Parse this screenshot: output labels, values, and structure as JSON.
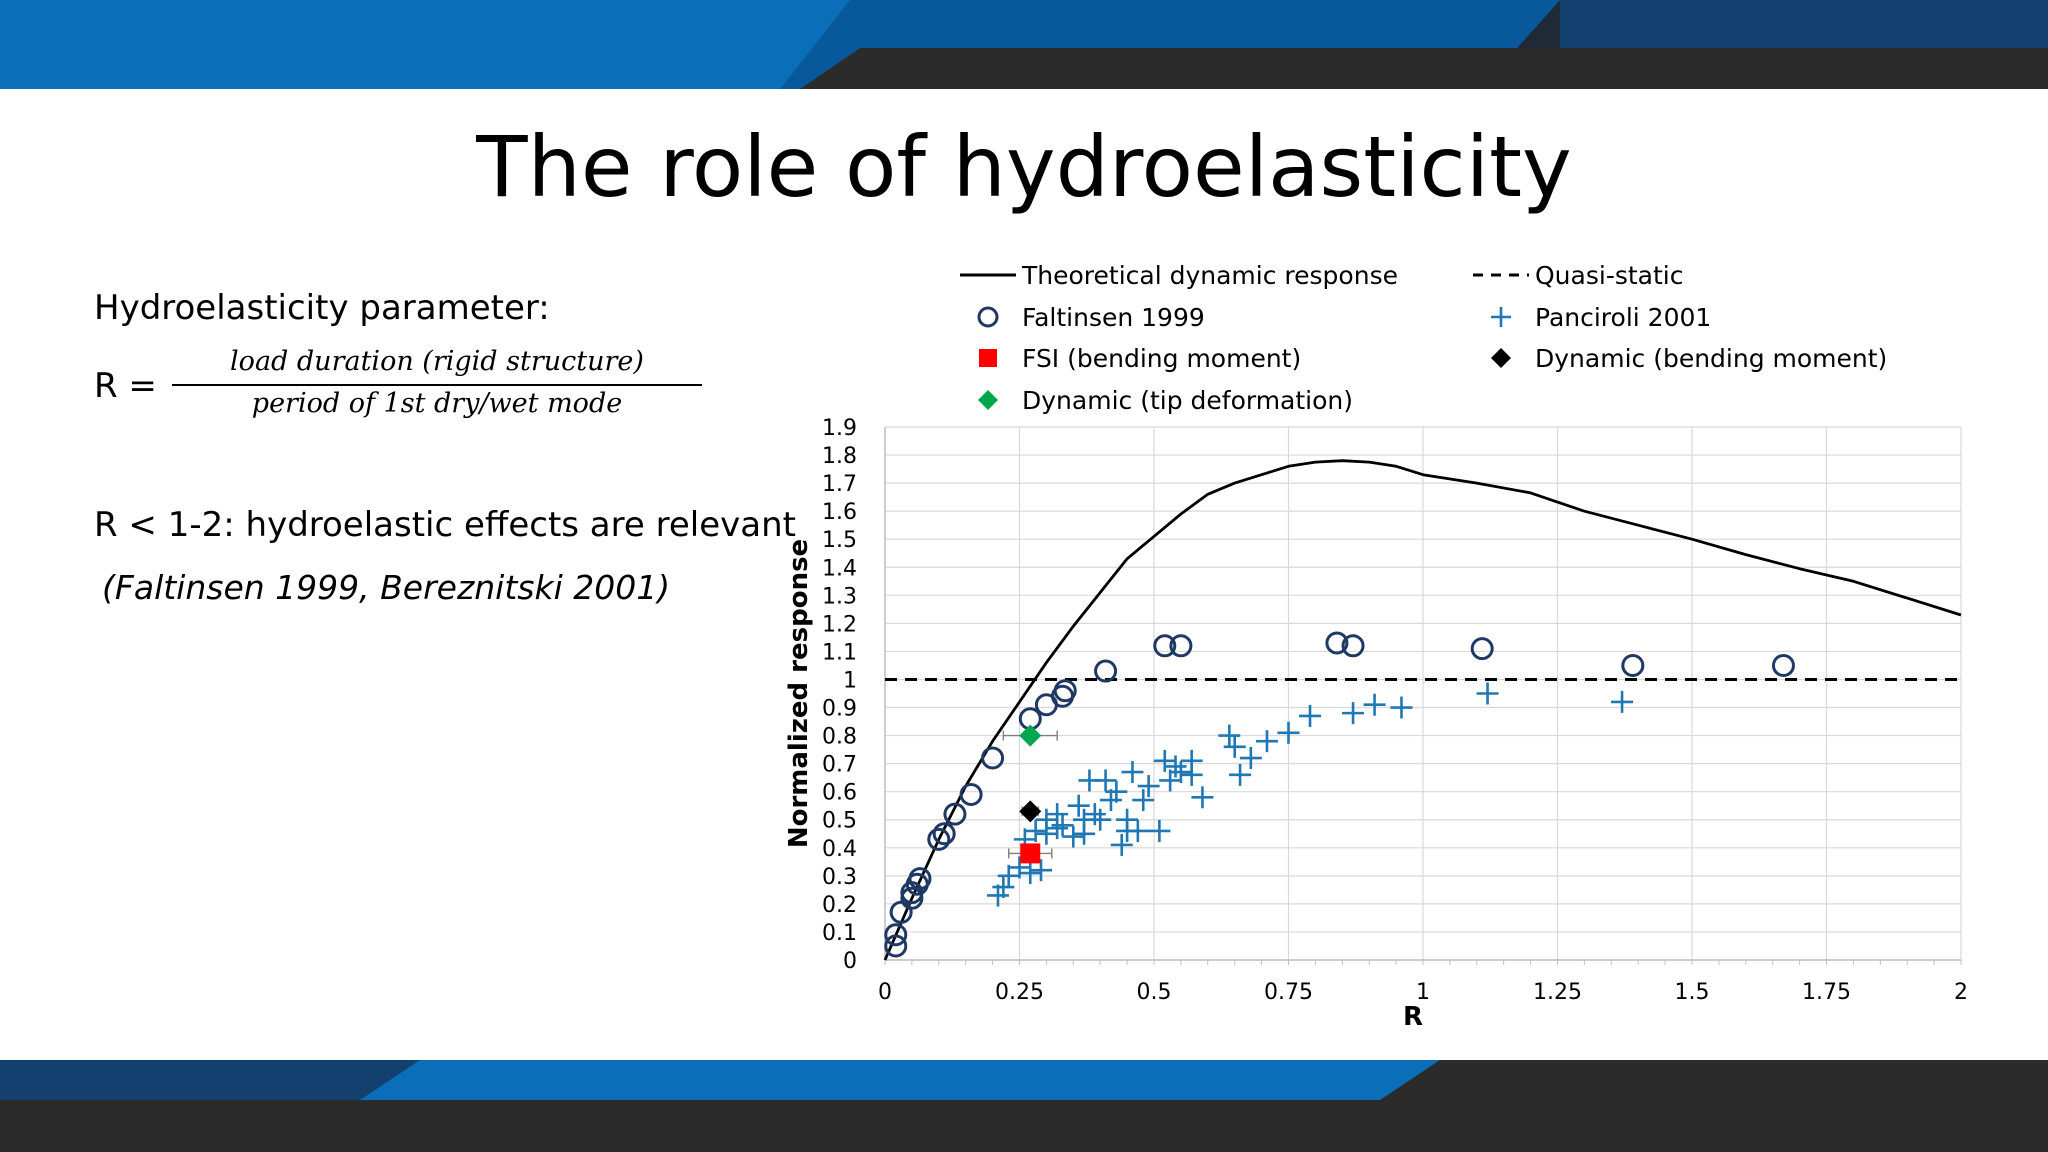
{
  "slide": {
    "title": "The role of hydroelasticity",
    "param_label": "Hydroelasticity parameter:",
    "formula_lhs": "R =",
    "formula_numerator": "load duration (rigid structure)",
    "formula_denominator": "period of 1st dry/wet mode",
    "relevance_text": "R <  1-2: hydroelastic effects are relevant",
    "citation_text": "(Faltinsen 1999, Bereznitski 2001)"
  },
  "colors": {
    "band_blue": "#0a6fb8",
    "band_dark": "#2b2b2b",
    "faltinsen": "#1f3864",
    "panciroli": "#1f77b4",
    "fsi": "#ff0000",
    "dynamic_tip": "#00a550",
    "dynamic_bending": "#000000"
  },
  "chart_data": {
    "type": "scatter",
    "title": "",
    "xlabel": "R",
    "ylabel": "Normalized response",
    "xlim": [
      0,
      2
    ],
    "ylim": [
      0,
      1.9
    ],
    "x_ticks": [
      "0",
      "0.25",
      "0.5",
      "0.75",
      "1",
      "1.25",
      "1.5",
      "1.75",
      "2"
    ],
    "y_ticks": [
      "0",
      "0.1",
      "0.2",
      "0.3",
      "0.4",
      "0.5",
      "0.6",
      "0.7",
      "0.8",
      "0.9",
      "1",
      "1.1",
      "1.2",
      "1.3",
      "1.4",
      "1.5",
      "1.6",
      "1.7",
      "1.8",
      "1.9"
    ],
    "grid": true,
    "legend_position": "top",
    "series": [
      {
        "name": "Theoretical dynamic response",
        "kind": "line",
        "style": "solid",
        "points": [
          [
            0.0,
            0.0
          ],
          [
            0.05,
            0.22
          ],
          [
            0.1,
            0.43
          ],
          [
            0.15,
            0.62
          ],
          [
            0.2,
            0.78
          ],
          [
            0.25,
            0.92
          ],
          [
            0.3,
            1.06
          ],
          [
            0.35,
            1.19
          ],
          [
            0.4,
            1.31
          ],
          [
            0.45,
            1.43
          ],
          [
            0.5,
            1.51
          ],
          [
            0.55,
            1.59
          ],
          [
            0.6,
            1.66
          ],
          [
            0.65,
            1.7
          ],
          [
            0.7,
            1.73
          ],
          [
            0.75,
            1.76
          ],
          [
            0.8,
            1.775
          ],
          [
            0.85,
            1.78
          ],
          [
            0.9,
            1.775
          ],
          [
            0.95,
            1.76
          ],
          [
            1.0,
            1.73
          ],
          [
            1.1,
            1.7
          ],
          [
            1.2,
            1.665
          ],
          [
            1.3,
            1.6
          ],
          [
            1.4,
            1.55
          ],
          [
            1.5,
            1.5
          ],
          [
            1.6,
            1.445
          ],
          [
            1.7,
            1.395
          ],
          [
            1.8,
            1.35
          ],
          [
            1.9,
            1.29
          ],
          [
            2.0,
            1.23
          ]
        ]
      },
      {
        "name": "Quasi-static",
        "kind": "line",
        "style": "dashed",
        "points": [
          [
            0,
            1.0
          ],
          [
            2,
            1.0
          ]
        ]
      },
      {
        "name": "Faltinsen 1999",
        "kind": "marker",
        "marker": "circle-open",
        "points": [
          [
            0.02,
            0.05
          ],
          [
            0.02,
            0.09
          ],
          [
            0.03,
            0.17
          ],
          [
            0.05,
            0.22
          ],
          [
            0.05,
            0.24
          ],
          [
            0.06,
            0.27
          ],
          [
            0.065,
            0.29
          ],
          [
            0.1,
            0.43
          ],
          [
            0.11,
            0.45
          ],
          [
            0.13,
            0.52
          ],
          [
            0.16,
            0.59
          ],
          [
            0.2,
            0.72
          ],
          [
            0.27,
            0.86
          ],
          [
            0.3,
            0.91
          ],
          [
            0.33,
            0.94
          ],
          [
            0.335,
            0.96
          ],
          [
            0.41,
            1.03
          ],
          [
            0.52,
            1.12
          ],
          [
            0.55,
            1.12
          ],
          [
            0.84,
            1.13
          ],
          [
            0.87,
            1.12
          ],
          [
            1.11,
            1.11
          ],
          [
            1.39,
            1.05
          ],
          [
            1.67,
            1.05
          ]
        ]
      },
      {
        "name": "Panciroli 2001",
        "kind": "marker",
        "marker": "plus",
        "points": [
          [
            0.21,
            0.23
          ],
          [
            0.22,
            0.26
          ],
          [
            0.23,
            0.3
          ],
          [
            0.25,
            0.33
          ],
          [
            0.27,
            0.31
          ],
          [
            0.29,
            0.32
          ],
          [
            0.26,
            0.43
          ],
          [
            0.28,
            0.46
          ],
          [
            0.3,
            0.5
          ],
          [
            0.3,
            0.45
          ],
          [
            0.32,
            0.47
          ],
          [
            0.32,
            0.52
          ],
          [
            0.33,
            0.48
          ],
          [
            0.35,
            0.44
          ],
          [
            0.36,
            0.55
          ],
          [
            0.37,
            0.45
          ],
          [
            0.37,
            0.5
          ],
          [
            0.38,
            0.64
          ],
          [
            0.39,
            0.52
          ],
          [
            0.4,
            0.5
          ],
          [
            0.41,
            0.64
          ],
          [
            0.42,
            0.57
          ],
          [
            0.43,
            0.6
          ],
          [
            0.44,
            0.41
          ],
          [
            0.45,
            0.46
          ],
          [
            0.45,
            0.5
          ],
          [
            0.46,
            0.67
          ],
          [
            0.47,
            0.46
          ],
          [
            0.48,
            0.57
          ],
          [
            0.49,
            0.62
          ],
          [
            0.51,
            0.46
          ],
          [
            0.52,
            0.71
          ],
          [
            0.53,
            0.64
          ],
          [
            0.54,
            0.69
          ],
          [
            0.55,
            0.67
          ],
          [
            0.57,
            0.66
          ],
          [
            0.57,
            0.71
          ],
          [
            0.59,
            0.58
          ],
          [
            0.64,
            0.8
          ],
          [
            0.65,
            0.76
          ],
          [
            0.66,
            0.66
          ],
          [
            0.68,
            0.72
          ],
          [
            0.71,
            0.78
          ],
          [
            0.75,
            0.81
          ],
          [
            0.79,
            0.87
          ],
          [
            0.87,
            0.88
          ],
          [
            0.91,
            0.91
          ],
          [
            0.96,
            0.9
          ],
          [
            1.12,
            0.95
          ],
          [
            1.37,
            0.92
          ]
        ]
      },
      {
        "name": "FSI (bending moment)",
        "kind": "marker",
        "marker": "square",
        "points": [
          [
            0.27,
            0.38
          ]
        ],
        "xerr": 0.04
      },
      {
        "name": "Dynamic (bending moment)",
        "kind": "marker",
        "marker": "diamond",
        "points": [
          [
            0.27,
            0.53
          ]
        ],
        "xerr": 0.015
      },
      {
        "name": "Dynamic (tip deformation)",
        "kind": "marker",
        "marker": "diamond",
        "points": [
          [
            0.27,
            0.8
          ]
        ],
        "xerr": 0.05
      }
    ]
  }
}
